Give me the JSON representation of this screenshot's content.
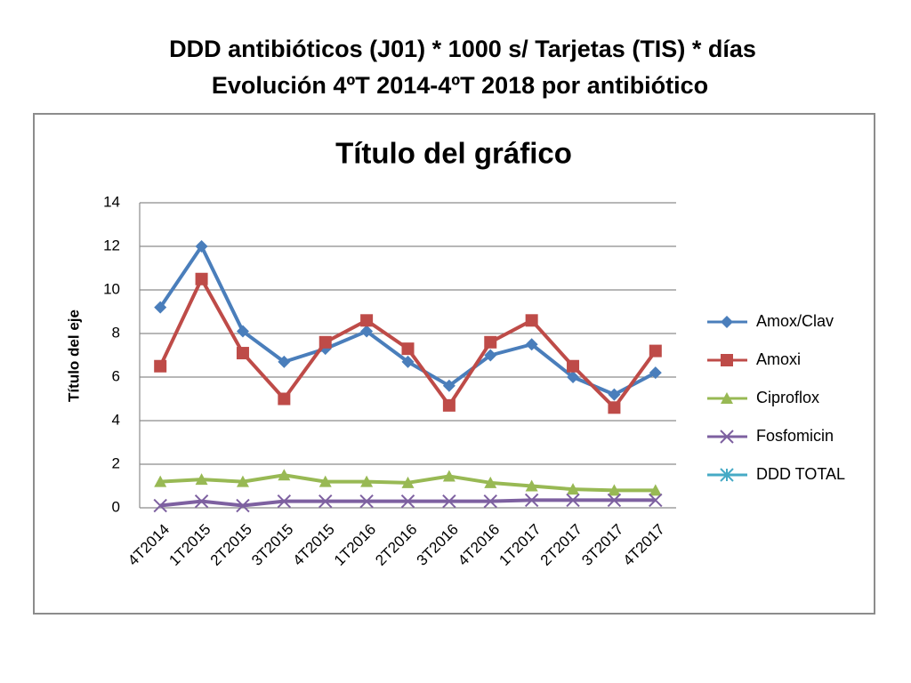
{
  "heading": [
    "DDD antibióticos (J01) * 1000 s/ Tarjetas (TIS) * días",
    "Evolución 4ºT 2014-4ºT 2018 por antibiótico"
  ],
  "chart_data": {
    "type": "line",
    "title": "Título del gráfico",
    "y_label": "Título del eje",
    "categories": [
      "4T2014",
      "1T2015",
      "2T2015",
      "3T2015",
      "4T2015",
      "1T2016",
      "2T2016",
      "3T2016",
      "4T2016",
      "1T2017",
      "2T2017",
      "3T2017",
      "4T2017"
    ],
    "series": [
      {
        "name": "Amox/Clav",
        "color": "#4a7ebb",
        "marker": "diamond",
        "values": [
          9.2,
          12.0,
          8.1,
          6.7,
          7.3,
          8.1,
          6.7,
          5.6,
          7.0,
          7.5,
          6.0,
          5.2,
          6.2
        ]
      },
      {
        "name": "Amoxi",
        "color": "#be4b48",
        "marker": "square",
        "values": [
          6.5,
          10.5,
          7.1,
          5.0,
          7.6,
          8.6,
          7.3,
          4.7,
          7.6,
          8.6,
          6.5,
          4.6,
          7.2
        ]
      },
      {
        "name": "Ciproflox",
        "color": "#98b954",
        "marker": "triangle",
        "values": [
          1.2,
          1.3,
          1.2,
          1.5,
          1.2,
          1.2,
          1.15,
          1.45,
          1.15,
          1.0,
          0.85,
          0.8,
          0.8
        ]
      },
      {
        "name": "Fosfomicin",
        "color": "#7d60a0",
        "marker": "x",
        "values": [
          0.1,
          0.3,
          0.1,
          0.3,
          0.3,
          0.3,
          0.3,
          0.3,
          0.3,
          0.35,
          0.35,
          0.35,
          0.35
        ]
      },
      {
        "name": "DDD TOTAL",
        "color": "#46aac5",
        "marker": "star",
        "values": [
          null,
          null,
          null,
          null,
          null,
          null,
          null,
          null,
          null,
          null,
          null,
          null,
          null
        ]
      }
    ],
    "ylim": [
      0,
      14
    ],
    "yticks": [
      0,
      2,
      4,
      6,
      8,
      10,
      12,
      14
    ],
    "grid": true,
    "legend": "right"
  }
}
